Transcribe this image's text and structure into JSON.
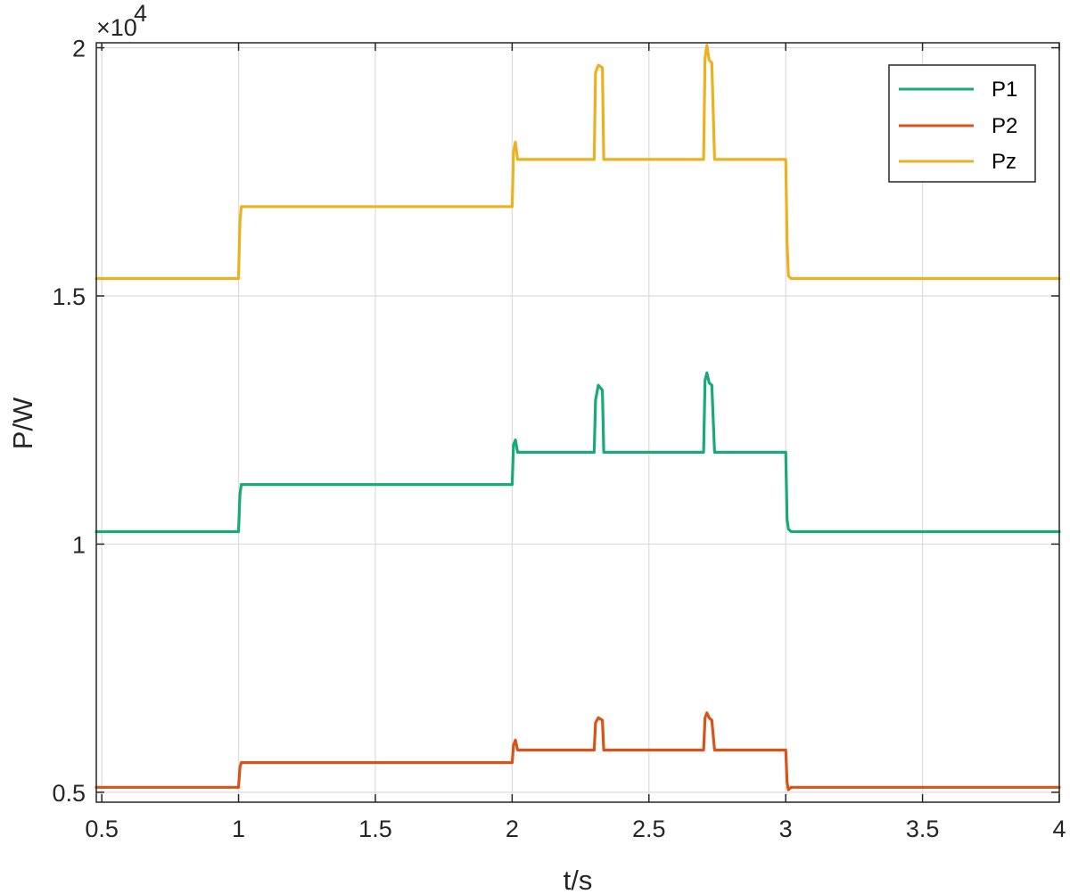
{
  "chart_data": {
    "type": "line",
    "title": "",
    "xlabel": "t/s",
    "ylabel": "P/W",
    "y_exponent": {
      "prefix": "×10",
      "power": "4"
    },
    "xlim": [
      0.48,
      4.0
    ],
    "ylim": [
      4.8,
      20.1
    ],
    "x_ticks": [
      0.5,
      1,
      1.5,
      2,
      2.5,
      3,
      3.5,
      4
    ],
    "x_tick_labels": [
      "0.5",
      "1",
      "1.5",
      "2",
      "2.5",
      "3",
      "3.5",
      "4"
    ],
    "y_ticks": [
      5,
      10,
      15,
      20
    ],
    "y_tick_labels": [
      "0.5",
      "1",
      "1.5",
      "2"
    ],
    "grid": true,
    "legend_position": "top-right",
    "series": [
      {
        "name": "P1",
        "color": "#1aa978",
        "x": [
          0.48,
          1.0,
          1.005,
          1.01,
          2.0,
          2.005,
          2.012,
          2.02,
          2.03,
          2.3,
          2.305,
          2.315,
          2.33,
          2.335,
          2.7,
          2.705,
          2.712,
          2.72,
          2.73,
          2.74,
          2.745,
          3.0,
          3.005,
          3.01,
          3.02,
          4.0
        ],
        "y": [
          10.25,
          10.25,
          11.0,
          11.2,
          11.2,
          12.0,
          12.1,
          11.85,
          11.85,
          11.85,
          12.9,
          13.2,
          13.1,
          11.85,
          11.85,
          13.3,
          13.45,
          13.25,
          13.2,
          11.85,
          11.85,
          11.85,
          10.5,
          10.3,
          10.25,
          10.25
        ]
      },
      {
        "name": "P2",
        "color": "#d95319",
        "x": [
          0.48,
          1.0,
          1.005,
          1.01,
          2.0,
          2.005,
          2.012,
          2.02,
          2.03,
          2.3,
          2.305,
          2.315,
          2.33,
          2.335,
          2.7,
          2.705,
          2.712,
          2.72,
          2.73,
          2.74,
          2.745,
          3.0,
          3.005,
          3.01,
          3.02,
          4.0
        ],
        "y": [
          5.1,
          5.1,
          5.5,
          5.6,
          5.6,
          5.95,
          6.05,
          5.85,
          5.85,
          5.85,
          6.4,
          6.5,
          6.45,
          5.85,
          5.85,
          6.5,
          6.6,
          6.5,
          6.45,
          5.85,
          5.85,
          5.85,
          5.2,
          5.05,
          5.1,
          5.1
        ]
      },
      {
        "name": "Pz",
        "color": "#edb120",
        "x": [
          0.48,
          1.0,
          1.005,
          1.01,
          2.0,
          2.005,
          2.012,
          2.02,
          2.03,
          2.3,
          2.305,
          2.315,
          2.33,
          2.335,
          2.7,
          2.705,
          2.712,
          2.72,
          2.73,
          2.74,
          2.745,
          3.0,
          3.005,
          3.01,
          3.02,
          4.0
        ],
        "y": [
          15.35,
          15.35,
          16.5,
          16.8,
          16.8,
          17.9,
          18.1,
          17.75,
          17.75,
          17.75,
          19.5,
          19.65,
          19.6,
          17.75,
          17.75,
          19.8,
          20.05,
          19.75,
          19.7,
          17.75,
          17.75,
          17.75,
          16.1,
          15.4,
          15.35,
          15.35
        ]
      }
    ]
  }
}
